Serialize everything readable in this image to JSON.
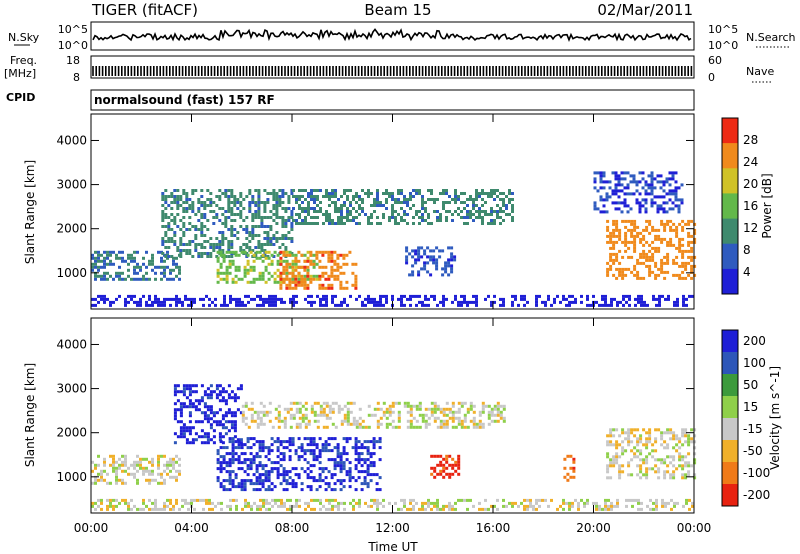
{
  "header": {
    "radar": "TIGER (fitACF)",
    "beam": "Beam 15",
    "date": "02/Mar/2011"
  },
  "status_panels": {
    "nsky_label": "N.Sky",
    "nsearch_label": "N.Search",
    "freq_label_1": "Freq.",
    "freq_label_2": "[MHz]",
    "nave_label": "Nave",
    "cpid_label": "CPID",
    "cpid_value": "normalsound (fast) 157 RF",
    "noise_left_ticks": [
      "10^5",
      "10^0"
    ],
    "noise_right_ticks": [
      "10^5",
      "10^0"
    ],
    "freq_left_ticks": [
      "18",
      "8"
    ],
    "freq_right_ticks": [
      "60",
      "0"
    ]
  },
  "chart_data": [
    {
      "type": "heatmap",
      "panel": "power",
      "xlabel": "",
      "ylabel": "Slant Range [km]",
      "x_ticks": [
        "00:00",
        "04:00",
        "08:00",
        "12:00",
        "16:00",
        "20:00",
        "00:00"
      ],
      "x_range_hours": [
        0,
        24
      ],
      "y_ticks": [
        1000,
        2000,
        3000,
        4000
      ],
      "y_range_km": [
        180,
        4600
      ],
      "colorbar": {
        "label": "Power [dB]",
        "ticks": [
          4,
          8,
          12,
          16,
          20,
          24,
          28
        ],
        "colors": [
          "#1f1fd6",
          "#2f5bbf",
          "#3f8a6e",
          "#63b84a",
          "#cfc227",
          "#f08a1c",
          "#ee2a14"
        ],
        "range": [
          0,
          30
        ]
      },
      "echo_bands": [
        {
          "start_h": 0.0,
          "end_h": 24.0,
          "range_start_km": 230,
          "range_end_km": 500,
          "value": 6
        },
        {
          "start_h": 0.0,
          "end_h": 3.5,
          "range_start_km": 850,
          "range_end_km": 1500,
          "value": 12
        },
        {
          "start_h": 2.8,
          "end_h": 8.0,
          "range_start_km": 1400,
          "range_end_km": 2900,
          "value": 13
        },
        {
          "start_h": 5.0,
          "end_h": 9.0,
          "range_start_km": 800,
          "range_end_km": 1500,
          "value": 19
        },
        {
          "start_h": 7.5,
          "end_h": 10.5,
          "range_start_km": 650,
          "range_end_km": 1500,
          "value": 27
        },
        {
          "start_h": 8.0,
          "end_h": 16.8,
          "range_start_km": 2100,
          "range_end_km": 2900,
          "value": 13
        },
        {
          "start_h": 12.5,
          "end_h": 14.5,
          "range_start_km": 950,
          "range_end_km": 1600,
          "value": 9
        },
        {
          "start_h": 20.5,
          "end_h": 24.0,
          "range_start_km": 900,
          "range_end_km": 2200,
          "value": 26
        },
        {
          "start_h": 20.0,
          "end_h": 23.5,
          "range_start_km": 2400,
          "range_end_km": 3300,
          "value": 8
        }
      ]
    },
    {
      "type": "heatmap",
      "panel": "velocity",
      "xlabel": "Time UT",
      "ylabel": "Slant Range [km]",
      "x_ticks": [
        "00:00",
        "04:00",
        "08:00",
        "12:00",
        "16:00",
        "20:00",
        "00:00"
      ],
      "x_range_hours": [
        0,
        24
      ],
      "y_ticks": [
        1000,
        2000,
        3000,
        4000
      ],
      "y_range_km": [
        180,
        4600
      ],
      "colorbar": {
        "label": "Velocity [m s^-1]",
        "ticks": [
          200,
          100,
          50,
          15,
          -15,
          -50,
          -100,
          -200
        ],
        "colors": [
          "#1f1fd6",
          "#2d56b9",
          "#3c9a3c",
          "#8fd04a",
          "#c8c8c8",
          "#f0b02a",
          "#f07a18",
          "#e82210"
        ],
        "range": [
          -250,
          250
        ]
      },
      "echo_bands": [
        {
          "start_h": 0.0,
          "end_h": 24.0,
          "range_start_km": 230,
          "range_end_km": 500,
          "value": 0
        },
        {
          "start_h": 0.0,
          "end_h": 3.5,
          "range_start_km": 850,
          "range_end_km": 1500,
          "value": 0
        },
        {
          "start_h": 3.3,
          "end_h": 6.0,
          "range_start_km": 1800,
          "range_end_km": 3100,
          "value": 220
        },
        {
          "start_h": 5.0,
          "end_h": 11.5,
          "range_start_km": 700,
          "range_end_km": 1900,
          "value": 210
        },
        {
          "start_h": 6.0,
          "end_h": 16.5,
          "range_start_km": 2100,
          "range_end_km": 2700,
          "value": 0
        },
        {
          "start_h": 13.5,
          "end_h": 14.6,
          "range_start_km": 1000,
          "range_end_km": 1500,
          "value": -120
        },
        {
          "start_h": 20.5,
          "end_h": 24.0,
          "range_start_km": 1000,
          "range_end_km": 2100,
          "value": 0
        },
        {
          "start_h": 18.8,
          "end_h": 19.2,
          "range_start_km": 900,
          "range_end_km": 1500,
          "value": -80
        }
      ]
    }
  ]
}
